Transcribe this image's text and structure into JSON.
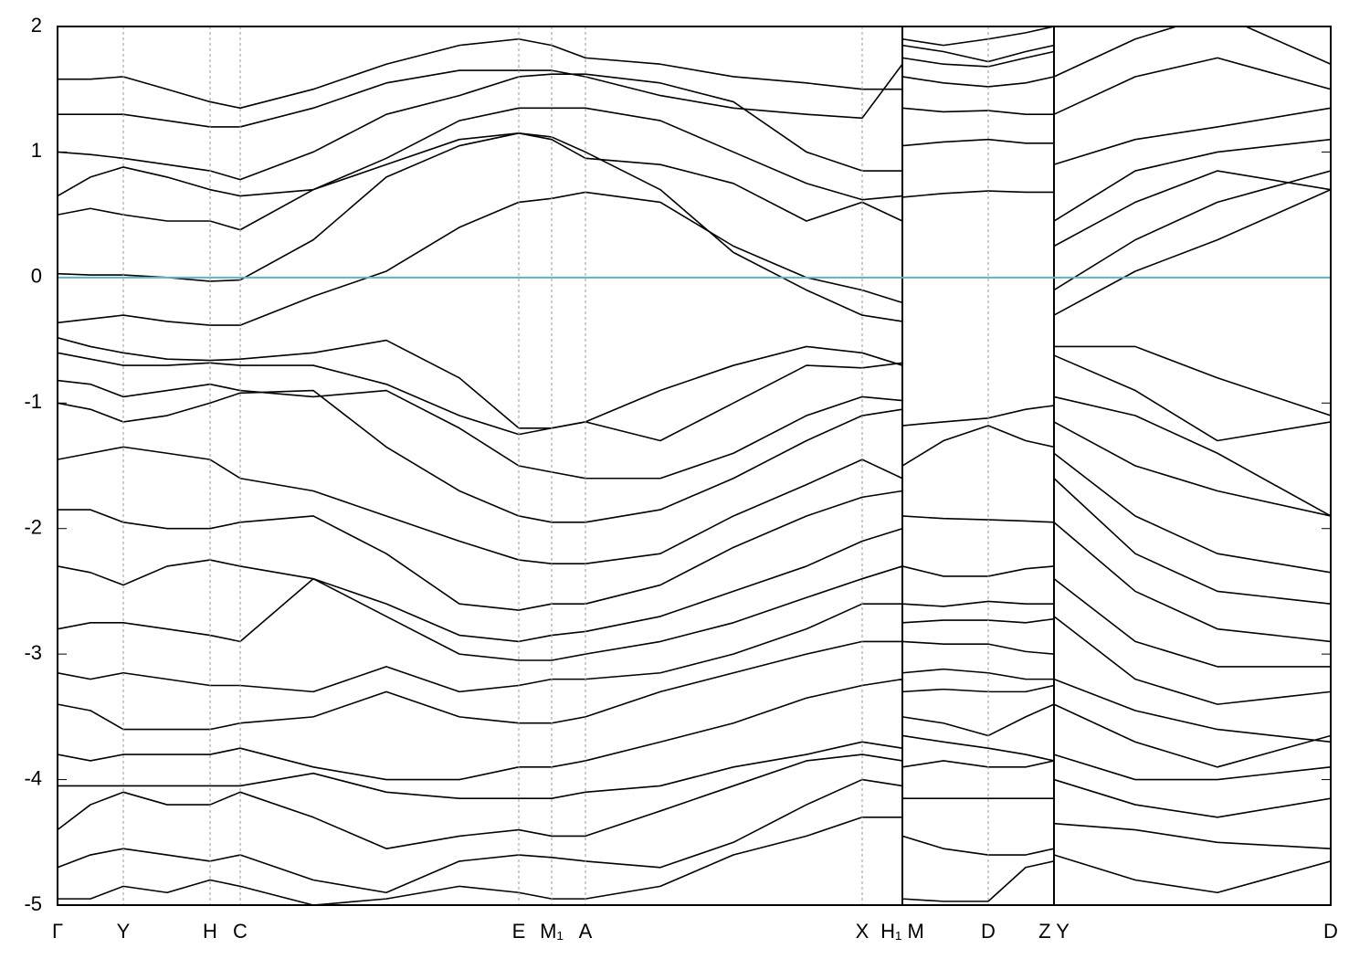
{
  "chart_data": {
    "type": "line",
    "xlim": [
      0,
      1394
    ],
    "ylim": [
      -5,
      2
    ],
    "yticks": [
      -5,
      -4,
      -3,
      -2,
      -1,
      0,
      1,
      2
    ],
    "xticks": [
      {
        "value": 0,
        "label": "Γ"
      },
      {
        "value": 72,
        "label": "Y"
      },
      {
        "value": 167,
        "label": "H"
      },
      {
        "value": 200,
        "label": "C"
      },
      {
        "value": 505,
        "label": "E"
      },
      {
        "value": 541,
        "label": "M₁"
      },
      {
        "value": 578,
        "label": "A"
      },
      {
        "value": 881,
        "label": "X"
      },
      {
        "value": 925,
        "label": "H₁ M"
      },
      {
        "value": 1019,
        "label": "D"
      },
      {
        "value": 1091,
        "label": "Z Y"
      },
      {
        "value": 1394,
        "label": "D"
      }
    ],
    "panel_breaks": [
      925,
      1091
    ],
    "hline": {
      "value": 0,
      "color": "#5ab4c8"
    },
    "color": "#000000",
    "x": [
      0,
      36,
      72,
      120,
      167,
      200,
      280,
      360,
      440,
      505,
      541,
      578,
      660,
      740,
      820,
      881,
      925,
      925,
      970,
      1019,
      1060,
      1091,
      1091,
      1180,
      1270,
      1394
    ],
    "series": [
      {
        "values": [
          0.03,
          0.02,
          0.02,
          0.0,
          -0.03,
          -0.02,
          0.3,
          0.8,
          1.05,
          1.15,
          1.12,
          1.0,
          0.7,
          0.2,
          -0.1,
          -0.3,
          -0.35,
          0.64,
          0.67,
          0.69,
          0.68,
          0.68,
          0.25,
          0.6,
          0.85,
          0.7
        ]
      },
      {
        "values": [
          -0.36,
          -0.33,
          -0.3,
          -0.35,
          -0.38,
          -0.38,
          -0.15,
          0.05,
          0.4,
          0.6,
          0.63,
          0.68,
          0.6,
          0.25,
          0.0,
          -0.1,
          -0.2,
          1.05,
          1.08,
          1.1,
          1.07,
          1.07,
          -0.3,
          0.05,
          0.3,
          0.7
        ]
      },
      {
        "values": [
          0.5,
          0.55,
          0.5,
          0.45,
          0.45,
          0.38,
          0.7,
          0.9,
          1.1,
          1.15,
          1.1,
          0.95,
          0.9,
          0.75,
          0.45,
          0.6,
          0.45,
          1.35,
          1.32,
          1.33,
          1.3,
          1.3,
          -0.1,
          0.3,
          0.6,
          0.85
        ]
      },
      {
        "values": [
          0.65,
          0.8,
          0.88,
          0.8,
          0.7,
          0.65,
          0.7,
          0.95,
          1.25,
          1.35,
          1.35,
          1.35,
          1.25,
          1.0,
          0.75,
          0.62,
          0.65,
          1.6,
          1.55,
          1.52,
          1.55,
          1.6,
          0.45,
          0.85,
          1.0,
          1.1
        ]
      },
      {
        "values": [
          1.0,
          0.98,
          0.95,
          0.9,
          0.85,
          0.78,
          1.0,
          1.3,
          1.45,
          1.6,
          1.62,
          1.62,
          1.55,
          1.4,
          1.0,
          0.85,
          0.85,
          1.75,
          1.7,
          1.68,
          1.75,
          1.8,
          0.9,
          1.1,
          1.2,
          1.35
        ]
      },
      {
        "values": [
          1.3,
          1.3,
          1.3,
          1.25,
          1.2,
          1.2,
          1.35,
          1.55,
          1.65,
          1.65,
          1.65,
          1.6,
          1.45,
          1.35,
          1.3,
          1.27,
          1.7,
          1.85,
          1.8,
          1.72,
          1.8,
          1.85,
          1.3,
          1.6,
          1.75,
          1.5
        ]
      },
      {
        "values": [
          1.58,
          1.58,
          1.6,
          1.5,
          1.4,
          1.35,
          1.5,
          1.7,
          1.85,
          1.9,
          1.85,
          1.75,
          1.7,
          1.6,
          1.55,
          1.5,
          1.5,
          1.9,
          1.85,
          1.9,
          1.95,
          2.0,
          1.6,
          1.9,
          2.1,
          1.7
        ]
      },
      {
        "values": [
          -0.48,
          -0.55,
          -0.6,
          -0.65,
          -0.66,
          -0.65,
          -0.6,
          -0.5,
          -0.8,
          -1.2,
          -1.2,
          -1.15,
          -0.9,
          -0.7,
          -0.55,
          -0.6,
          -0.7,
          -1.18,
          -1.15,
          -1.12,
          -1.05,
          -1.02,
          -0.55,
          -0.55,
          -0.8,
          -1.1
        ]
      },
      {
        "values": [
          -0.6,
          -0.65,
          -0.7,
          -0.7,
          -0.68,
          -0.7,
          -0.7,
          -0.85,
          -1.1,
          -1.25,
          -1.2,
          -1.15,
          -1.3,
          -1.0,
          -0.7,
          -0.72,
          -0.68,
          -1.5,
          -1.3,
          -1.18,
          -1.3,
          -1.35,
          -0.62,
          -0.9,
          -1.3,
          -1.15
        ]
      },
      {
        "values": [
          -0.82,
          -0.85,
          -0.95,
          -0.9,
          -0.85,
          -0.9,
          -0.95,
          -0.9,
          -1.2,
          -1.5,
          -1.55,
          -1.6,
          -1.6,
          -1.4,
          -1.1,
          -0.95,
          -0.98,
          -1.9,
          -1.92,
          -1.93,
          -1.94,
          -1.95,
          -0.95,
          -1.1,
          -1.4,
          -1.9
        ]
      },
      {
        "values": [
          -1.0,
          -1.05,
          -1.15,
          -1.1,
          -1.0,
          -0.92,
          -0.9,
          -1.35,
          -1.7,
          -1.9,
          -1.95,
          -1.95,
          -1.85,
          -1.6,
          -1.3,
          -1.1,
          -1.05,
          -2.3,
          -2.38,
          -2.38,
          -2.32,
          -2.3,
          -1.15,
          -1.5,
          -1.7,
          -1.9
        ]
      },
      {
        "values": [
          -1.45,
          -1.4,
          -1.35,
          -1.4,
          -1.45,
          -1.6,
          -1.7,
          -1.9,
          -2.1,
          -2.25,
          -2.28,
          -2.28,
          -2.2,
          -1.9,
          -1.65,
          -1.45,
          -1.6,
          -2.6,
          -2.62,
          -2.58,
          -2.6,
          -2.6,
          -1.4,
          -1.9,
          -2.2,
          -2.35
        ]
      },
      {
        "values": [
          -1.85,
          -1.85,
          -1.95,
          -2.0,
          -2.0,
          -1.95,
          -1.9,
          -2.2,
          -2.6,
          -2.65,
          -2.6,
          -2.6,
          -2.45,
          -2.15,
          -1.9,
          -1.75,
          -1.7,
          -2.75,
          -2.73,
          -2.73,
          -2.75,
          -2.72,
          -1.6,
          -2.2,
          -2.5,
          -2.6
        ]
      },
      {
        "values": [
          -2.3,
          -2.35,
          -2.45,
          -2.3,
          -2.25,
          -2.3,
          -2.4,
          -2.6,
          -2.85,
          -2.9,
          -2.85,
          -2.82,
          -2.7,
          -2.5,
          -2.3,
          -2.1,
          -2.0,
          -2.9,
          -2.92,
          -2.92,
          -2.98,
          -3.0,
          -1.95,
          -2.5,
          -2.8,
          -2.9
        ]
      },
      {
        "values": [
          -2.8,
          -2.75,
          -2.75,
          -2.8,
          -2.85,
          -2.9,
          -2.4,
          -2.7,
          -3.0,
          -3.05,
          -3.05,
          -3.0,
          -2.9,
          -2.75,
          -2.55,
          -2.4,
          -2.3,
          -3.15,
          -3.12,
          -3.15,
          -3.2,
          -3.2,
          -2.4,
          -2.9,
          -3.1,
          -3.1
        ]
      },
      {
        "values": [
          -3.15,
          -3.2,
          -3.15,
          -3.2,
          -3.25,
          -3.25,
          -3.3,
          -3.1,
          -3.3,
          -3.25,
          -3.2,
          -3.2,
          -3.15,
          -3.0,
          -2.8,
          -2.6,
          -2.6,
          -3.3,
          -3.28,
          -3.3,
          -3.3,
          -3.25,
          -2.7,
          -3.2,
          -3.4,
          -3.3
        ]
      },
      {
        "values": [
          -3.4,
          -3.45,
          -3.6,
          -3.6,
          -3.6,
          -3.55,
          -3.5,
          -3.3,
          -3.5,
          -3.55,
          -3.55,
          -3.5,
          -3.3,
          -3.15,
          -3.0,
          -2.9,
          -2.9,
          -3.5,
          -3.55,
          -3.65,
          -3.5,
          -3.4,
          -3.2,
          -3.45,
          -3.6,
          -3.7
        ]
      },
      {
        "values": [
          -3.8,
          -3.85,
          -3.8,
          -3.8,
          -3.8,
          -3.75,
          -3.9,
          -4.0,
          -4.0,
          -3.9,
          -3.9,
          -3.85,
          -3.7,
          -3.55,
          -3.35,
          -3.25,
          -3.2,
          -3.65,
          -3.7,
          -3.75,
          -3.8,
          -3.85,
          -3.4,
          -3.7,
          -3.9,
          -3.65
        ]
      },
      {
        "values": [
          -4.05,
          -4.05,
          -4.05,
          -4.05,
          -4.05,
          -4.05,
          -3.95,
          -4.1,
          -4.15,
          -4.15,
          -4.15,
          -4.1,
          -4.05,
          -3.9,
          -3.8,
          -3.7,
          -3.75,
          -3.9,
          -3.85,
          -3.9,
          -3.9,
          -3.85,
          -3.8,
          -4.0,
          -4.0,
          -3.9
        ]
      },
      {
        "values": [
          -4.4,
          -4.2,
          -4.1,
          -4.2,
          -4.2,
          -4.1,
          -4.3,
          -4.55,
          -4.45,
          -4.4,
          -4.45,
          -4.45,
          -4.25,
          -4.05,
          -3.85,
          -3.8,
          -3.85,
          -4.15,
          -4.15,
          -4.15,
          -4.15,
          -4.15,
          -4.0,
          -4.2,
          -4.3,
          -4.15
        ]
      },
      {
        "values": [
          -4.7,
          -4.6,
          -4.55,
          -4.6,
          -4.65,
          -4.6,
          -4.8,
          -4.9,
          -4.65,
          -4.6,
          -4.62,
          -4.65,
          -4.7,
          -4.5,
          -4.2,
          -4.0,
          -4.05,
          -4.45,
          -4.55,
          -4.6,
          -4.6,
          -4.55,
          -4.35,
          -4.4,
          -4.5,
          -4.55
        ]
      },
      {
        "values": [
          -4.95,
          -4.95,
          -4.85,
          -4.9,
          -4.8,
          -4.85,
          -5.0,
          -4.95,
          -4.85,
          -4.9,
          -4.95,
          -4.95,
          -4.85,
          -4.6,
          -4.45,
          -4.3,
          -4.3,
          -4.95,
          -4.97,
          -4.97,
          -4.7,
          -4.65,
          -4.6,
          -4.8,
          -4.9,
          -4.65
        ]
      }
    ]
  }
}
